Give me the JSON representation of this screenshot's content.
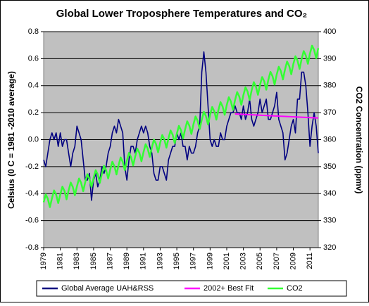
{
  "chart_data": {
    "type": "line",
    "title": "Global Lower Troposphere Temperatures and CO₂",
    "y_label": "Celsius (0 C = 1981 -2010 average)",
    "y2_label": "CO2 Concentration (ppmv)",
    "xlim": [
      1979,
      2012
    ],
    "xticks": [
      1979,
      1981,
      1983,
      1985,
      1987,
      1989,
      1991,
      1993,
      1995,
      1997,
      1999,
      2001,
      2003,
      2005,
      2007,
      2009,
      2011
    ],
    "ylim": [
      -0.8,
      0.8
    ],
    "yticks": [
      -0.8,
      -0.6,
      -0.4,
      -0.2,
      {
        "value": 0,
        "label": "0.0"
      },
      0.2,
      0.4,
      0.6,
      0.8
    ],
    "y2lim": [
      320,
      400
    ],
    "y2ticks": [
      320,
      330,
      340,
      350,
      360,
      370,
      380,
      390,
      400
    ],
    "grid": true,
    "legend": "bottom",
    "series": [
      {
        "name": "Global Average UAH&RSS",
        "color": "#000080",
        "x": [
          1979,
          1979.25,
          1979.5,
          1979.75,
          1980,
          1980.25,
          1980.5,
          1980.75,
          1981,
          1981.25,
          1981.5,
          1981.75,
          1982,
          1982.25,
          1982.5,
          1982.75,
          1983,
          1983.25,
          1983.5,
          1983.75,
          1984,
          1984.25,
          1984.5,
          1984.75,
          1985,
          1985.25,
          1985.5,
          1985.75,
          1986,
          1986.25,
          1986.5,
          1986.75,
          1987,
          1987.25,
          1987.5,
          1987.75,
          1988,
          1988.25,
          1988.5,
          1988.75,
          1989,
          1989.25,
          1989.5,
          1989.75,
          1990,
          1990.25,
          1990.5,
          1990.75,
          1991,
          1991.25,
          1991.5,
          1991.75,
          1992,
          1992.25,
          1992.5,
          1992.75,
          1993,
          1993.25,
          1993.5,
          1993.75,
          1994,
          1994.25,
          1994.5,
          1994.75,
          1995,
          1995.25,
          1995.5,
          1995.75,
          1996,
          1996.25,
          1996.5,
          1996.75,
          1997,
          1997.25,
          1997.5,
          1997.75,
          1998,
          1998.25,
          1998.5,
          1998.75,
          1999,
          1999.25,
          1999.5,
          1999.75,
          2000,
          2000.25,
          2000.5,
          2000.75,
          2001,
          2001.25,
          2001.5,
          2001.75,
          2002,
          2002.25,
          2002.5,
          2002.75,
          2003,
          2003.25,
          2003.5,
          2003.75,
          2004,
          2004.25,
          2004.5,
          2004.75,
          2005,
          2005.25,
          2005.5,
          2005.75,
          2006,
          2006.25,
          2006.5,
          2006.75,
          2007,
          2007.25,
          2007.5,
          2007.75,
          2008,
          2008.25,
          2008.5,
          2008.75,
          2009,
          2009.25,
          2009.5,
          2009.75,
          2010,
          2010.25,
          2010.5,
          2010.75,
          2011,
          2011.25,
          2011.5,
          2011.75,
          2012
        ],
        "values": [
          -0.15,
          -0.2,
          -0.1,
          0.0,
          0.05,
          0.0,
          0.05,
          -0.05,
          0.05,
          -0.05,
          0.0,
          0.0,
          -0.1,
          -0.2,
          -0.1,
          -0.05,
          0.1,
          0.05,
          0.0,
          -0.15,
          -0.3,
          -0.3,
          -0.25,
          -0.45,
          -0.3,
          -0.25,
          -0.35,
          -0.3,
          -0.2,
          -0.25,
          -0.2,
          -0.1,
          -0.05,
          0.05,
          0.1,
          0.05,
          0.15,
          0.1,
          0.05,
          -0.2,
          -0.3,
          -0.15,
          -0.05,
          -0.05,
          -0.1,
          0.0,
          0.05,
          0.1,
          0.05,
          0.1,
          0.05,
          -0.05,
          -0.1,
          -0.25,
          -0.3,
          -0.3,
          -0.2,
          -0.2,
          -0.25,
          -0.3,
          -0.15,
          -0.1,
          -0.05,
          -0.05,
          0.05,
          0.0,
          0.05,
          -0.05,
          -0.05,
          -0.15,
          -0.05,
          -0.1,
          -0.1,
          -0.05,
          0.05,
          0.1,
          0.5,
          0.65,
          0.5,
          0.25,
          0.0,
          -0.05,
          0.0,
          -0.05,
          -0.05,
          0.05,
          0.0,
          0.0,
          0.1,
          0.15,
          0.2,
          0.2,
          0.25,
          0.2,
          0.2,
          0.15,
          0.25,
          0.15,
          0.2,
          0.3,
          0.15,
          0.1,
          0.15,
          0.2,
          0.3,
          0.2,
          0.25,
          0.3,
          0.15,
          0.15,
          0.2,
          0.25,
          0.35,
          0.15,
          0.1,
          0.05,
          -0.15,
          -0.1,
          0.0,
          0.1,
          0.15,
          0.05,
          0.3,
          0.3,
          0.5,
          0.5,
          0.4,
          0.2,
          -0.05,
          0.1,
          0.2,
          0.1,
          -0.1
        ]
      },
      {
        "name": "2002+ Best Fit",
        "color": "#ff00ff",
        "x": [
          2002,
          2012
        ],
        "values": [
          0.19,
          0.16
        ]
      },
      {
        "name": "CO2",
        "color": "#33ff33",
        "axis": "y2",
        "x": [
          1979,
          1979.25,
          1979.5,
          1979.75,
          1980,
          1980.25,
          1980.5,
          1980.75,
          1981,
          1981.25,
          1981.5,
          1981.75,
          1982,
          1982.25,
          1982.5,
          1982.75,
          1983,
          1983.25,
          1983.5,
          1983.75,
          1984,
          1984.25,
          1984.5,
          1984.75,
          1985,
          1985.25,
          1985.5,
          1985.75,
          1986,
          1986.25,
          1986.5,
          1986.75,
          1987,
          1987.25,
          1987.5,
          1987.75,
          1988,
          1988.25,
          1988.5,
          1988.75,
          1989,
          1989.25,
          1989.5,
          1989.75,
          1990,
          1990.25,
          1990.5,
          1990.75,
          1991,
          1991.25,
          1991.5,
          1991.75,
          1992,
          1992.25,
          1992.5,
          1992.75,
          1993,
          1993.25,
          1993.5,
          1993.75,
          1994,
          1994.25,
          1994.5,
          1994.75,
          1995,
          1995.25,
          1995.5,
          1995.75,
          1996,
          1996.25,
          1996.5,
          1996.75,
          1997,
          1997.25,
          1997.5,
          1997.75,
          1998,
          1998.25,
          1998.5,
          1998.75,
          1999,
          1999.25,
          1999.5,
          1999.75,
          2000,
          2000.25,
          2000.5,
          2000.75,
          2001,
          2001.25,
          2001.5,
          2001.75,
          2002,
          2002.25,
          2002.5,
          2002.75,
          2003,
          2003.25,
          2003.5,
          2003.75,
          2004,
          2004.25,
          2004.5,
          2004.75,
          2005,
          2005.25,
          2005.5,
          2005.75,
          2006,
          2006.25,
          2006.5,
          2006.75,
          2007,
          2007.25,
          2007.5,
          2007.75,
          2008,
          2008.25,
          2008.5,
          2008.75,
          2009,
          2009.25,
          2009.5,
          2009.75,
          2010,
          2010.25,
          2010.5,
          2010.75,
          2011,
          2011.25,
          2011.5,
          2011.75,
          2012
        ],
        "values": [
          336.8,
          339.7,
          338.1,
          335.0,
          338.3,
          341.2,
          339.6,
          336.5,
          339.7,
          342.6,
          341.0,
          337.9,
          341.2,
          344.1,
          342.5,
          339.4,
          342.7,
          345.6,
          344.0,
          340.9,
          344.3,
          347.2,
          345.6,
          342.5,
          345.8,
          348.7,
          347.1,
          344.0,
          347.4,
          350.3,
          348.7,
          345.6,
          348.9,
          351.8,
          350.2,
          347.1,
          350.5,
          353.4,
          351.8,
          348.7,
          352.2,
          355.1,
          353.5,
          350.4,
          353.8,
          356.7,
          355.1,
          352.0,
          355.4,
          358.3,
          356.7,
          353.6,
          357.1,
          360.0,
          358.4,
          355.3,
          358.8,
          361.7,
          360.1,
          357.0,
          360.5,
          363.4,
          361.8,
          358.7,
          362.2,
          365.1,
          363.5,
          360.4,
          363.9,
          366.8,
          365.2,
          362.1,
          365.7,
          368.6,
          367.0,
          363.9,
          367.4,
          370.3,
          368.7,
          365.6,
          369.2,
          372.1,
          370.5,
          367.4,
          371.0,
          373.9,
          372.3,
          369.2,
          372.8,
          375.7,
          374.1,
          371.0,
          374.7,
          377.6,
          376.0,
          372.9,
          376.5,
          379.4,
          377.8,
          374.7,
          378.4,
          381.3,
          379.7,
          376.6,
          380.3,
          383.2,
          381.6,
          378.5,
          382.2,
          385.1,
          383.5,
          380.4,
          384.1,
          387.0,
          385.4,
          382.3,
          386.0,
          388.9,
          387.3,
          384.2,
          388.0,
          390.9,
          389.3,
          386.2,
          389.9,
          392.8,
          391.2,
          388.1,
          391.9,
          394.8,
          393.2,
          390.1,
          393.9
        ]
      }
    ]
  }
}
